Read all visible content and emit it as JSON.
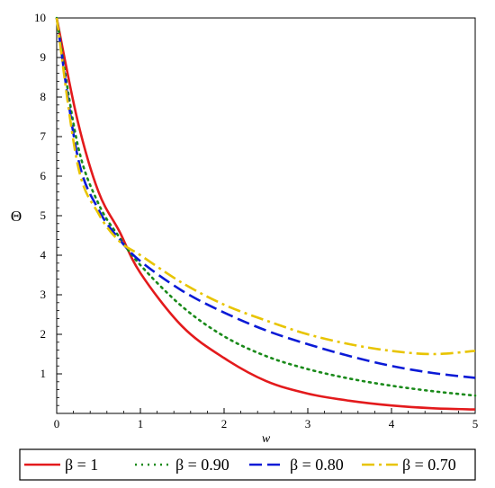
{
  "chart_data": {
    "type": "line",
    "xlabel": "w",
    "ylabel": "Θ",
    "xlim": [
      0,
      5
    ],
    "ylim": [
      0,
      10
    ],
    "xticks": [
      0,
      1,
      2,
      3,
      4,
      5
    ],
    "yticks": [
      1,
      2,
      3,
      4,
      5,
      6,
      7,
      8,
      9,
      10
    ],
    "legend_position": "bottom",
    "x": [
      0,
      0.25,
      0.5,
      0.75,
      1,
      1.5,
      2,
      2.5,
      3,
      3.5,
      4,
      4.5,
      5
    ],
    "series": [
      {
        "name": "β = 1",
        "color": "#e31a1c",
        "dash": "solid",
        "values": [
          10,
          7.4,
          5.6,
          4.6,
          3.55,
          2.2,
          1.4,
          0.82,
          0.5,
          0.32,
          0.2,
          0.13,
          0.1
        ]
      },
      {
        "name": "β = 0.90",
        "color": "#1a8a1a",
        "dash": "dotted",
        "values": [
          10,
          6.8,
          5.3,
          4.45,
          3.75,
          2.7,
          1.95,
          1.45,
          1.12,
          0.88,
          0.7,
          0.56,
          0.45
        ]
      },
      {
        "name": "β = 0.80",
        "color": "#0a1ad6",
        "dash": "dashed",
        "values": [
          10,
          6.5,
          5.15,
          4.4,
          3.85,
          3.1,
          2.55,
          2.1,
          1.75,
          1.45,
          1.2,
          1.02,
          0.9
        ]
      },
      {
        "name": "β = 0.70",
        "color": "#e8c400",
        "dash": "dashdot",
        "values": [
          10,
          6.3,
          5.05,
          4.35,
          4.0,
          3.3,
          2.75,
          2.35,
          2.0,
          1.75,
          1.58,
          1.5,
          1.58
        ]
      }
    ]
  }
}
